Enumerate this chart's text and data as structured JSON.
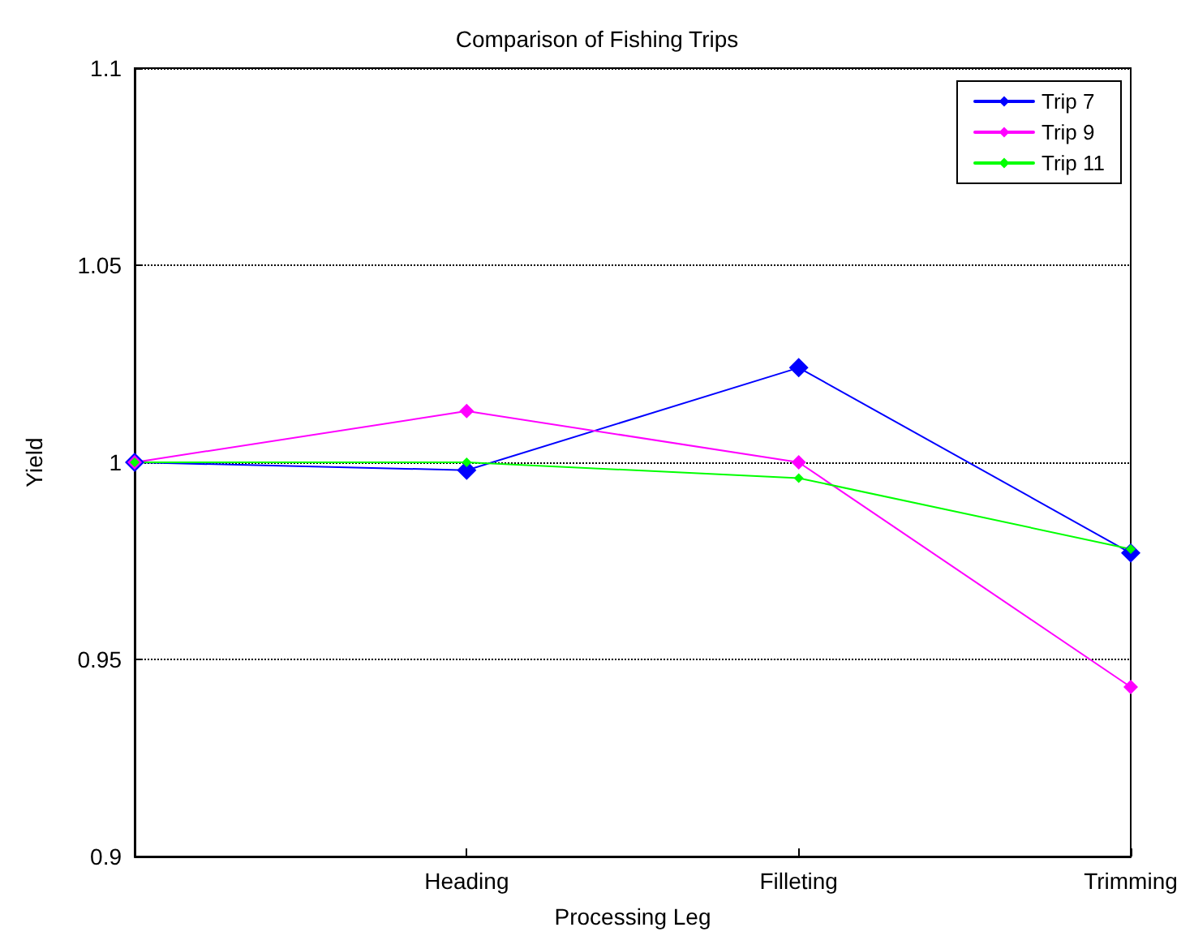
{
  "chart_data": {
    "type": "line",
    "title": "Comparison of Fishing Trips",
    "xlabel": "Processing Leg",
    "ylabel": "Yield",
    "categories": [
      null,
      "Heading",
      "Filleting",
      "Trimming"
    ],
    "series": [
      {
        "name": "Trip 7",
        "color": "#0000ff",
        "values": [
          1.0,
          0.998,
          1.024,
          0.977
        ]
      },
      {
        "name": "Trip 9",
        "color": "#ff00ff",
        "values": [
          1.0,
          1.013,
          1.0,
          0.943
        ]
      },
      {
        "name": "Trip 11",
        "color": "#00ff00",
        "values": [
          1.0,
          1.0,
          0.996,
          0.978
        ]
      }
    ],
    "ylim": [
      0.9,
      1.1
    ],
    "yticks": [
      0.9,
      0.95,
      1,
      1.05,
      1.1
    ],
    "grid": "y",
    "legend": "top right",
    "marker": "diamond",
    "line_style": "solid"
  }
}
